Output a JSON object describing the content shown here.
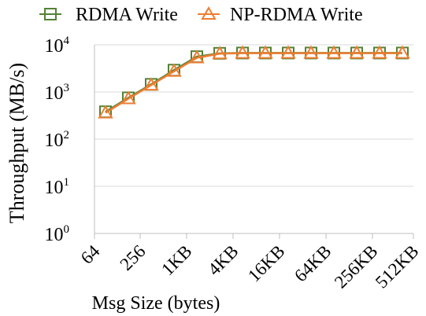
{
  "chart_data": {
    "type": "line",
    "title": "",
    "xlabel": "Msg Size (bytes)",
    "ylabel": "Throughput (MB/s)",
    "y_scale": "log",
    "ylim": [
      1,
      10000
    ],
    "y_ticks": [
      {
        "base": "10",
        "exp": "0"
      },
      {
        "base": "10",
        "exp": "1"
      },
      {
        "base": "10",
        "exp": "2"
      },
      {
        "base": "10",
        "exp": "3"
      },
      {
        "base": "10",
        "exp": "4"
      }
    ],
    "x_tick_labels": [
      "64",
      "256",
      "1KB",
      "4KB",
      "16KB",
      "64KB",
      "256KB",
      "512KB"
    ],
    "x": [
      "64",
      "128",
      "256",
      "512",
      "1KB",
      "2KB",
      "4KB",
      "8KB",
      "16KB",
      "32KB",
      "64KB",
      "128KB",
      "256KB",
      "512KB"
    ],
    "series": [
      {
        "name": "RDMA Write",
        "color": "#548235",
        "marker": "square",
        "values": [
          380,
          750,
          1450,
          2900,
          5600,
          6600,
          6700,
          6700,
          6700,
          6700,
          6700,
          6700,
          6700,
          6700
        ]
      },
      {
        "name": "NP-RDMA Write",
        "color": "#ed7d31",
        "marker": "triangle",
        "values": [
          360,
          720,
          1400,
          2750,
          5300,
          6500,
          6650,
          6650,
          6650,
          6650,
          6650,
          6650,
          6650,
          6650
        ]
      }
    ],
    "grid": {
      "horizontal": true,
      "vertical": false
    },
    "legend_position": "top"
  }
}
